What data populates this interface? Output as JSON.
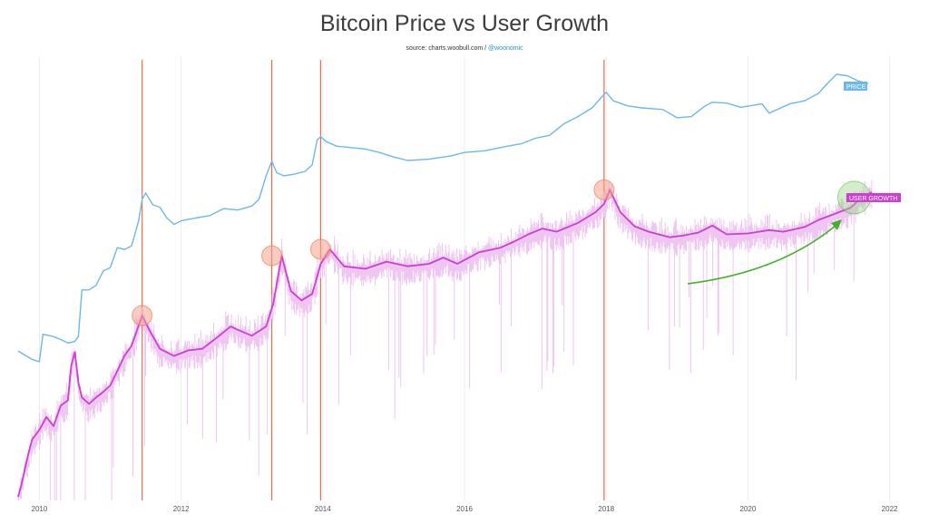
{
  "colors": {
    "price": "#6cb8ea",
    "user_growth_smooth": "#cc3fd0",
    "user_growth_raw": "#efc6f2",
    "event_line": "#f06a4d",
    "peak_highlight": "#f4a28c",
    "recent_highlight": "#9bd98a",
    "arrow": "#44b02a",
    "grid": "#ececec"
  },
  "chart_data": {
    "type": "line",
    "title": "Bitcoin Price vs User Growth",
    "source_prefix": "source: charts.woobull.com / ",
    "source_handle": "@woonomic",
    "x_ticks": [
      "2010",
      "2012",
      "2014",
      "2016",
      "2018",
      "2020",
      "2022"
    ],
    "x_range": [
      2009.7,
      2022.3
    ],
    "y_axis": "log scale, unlabeled",
    "grid": "vertical gridlines at yearly ticks",
    "series": [
      {
        "name": "PRICE",
        "key": "price",
        "x": [
          2009.7,
          2009.8,
          2009.9,
          2010.0,
          2010.05,
          2010.2,
          2010.3,
          2010.4,
          2010.5,
          2010.55,
          2010.6,
          2010.7,
          2010.8,
          2010.9,
          2011.0,
          2011.1,
          2011.2,
          2011.3,
          2011.4,
          2011.45,
          2011.5,
          2011.6,
          2011.7,
          2011.8,
          2011.9,
          2012.0,
          2012.2,
          2012.4,
          2012.6,
          2012.8,
          2013.0,
          2013.1,
          2013.2,
          2013.28,
          2013.35,
          2013.45,
          2013.6,
          2013.75,
          2013.85,
          2013.92,
          2013.97,
          2014.05,
          2014.2,
          2014.4,
          2014.6,
          2014.8,
          2015.0,
          2015.2,
          2015.5,
          2015.8,
          2016.0,
          2016.3,
          2016.6,
          2016.8,
          2017.0,
          2017.2,
          2017.4,
          2017.6,
          2017.8,
          2017.95,
          2018.0,
          2018.1,
          2018.3,
          2018.5,
          2018.8,
          2019.0,
          2019.2,
          2019.4,
          2019.5,
          2019.7,
          2019.9,
          2020.2,
          2020.3,
          2020.6,
          2020.8,
          2021.0,
          2021.1,
          2021.25,
          2021.4,
          2021.55,
          2021.7
        ],
        "y": [
          0.0012,
          0.0009,
          0.0007,
          0.0006,
          0.0035,
          0.003,
          0.0025,
          0.002,
          0.0022,
          0.003,
          0.06,
          0.06,
          0.08,
          0.2,
          0.25,
          0.9,
          0.8,
          1.0,
          5.0,
          20.0,
          30.0,
          14.0,
          12.0,
          6.0,
          4.0,
          5.0,
          6.0,
          7.0,
          11.0,
          10.0,
          13.0,
          20.0,
          90.0,
          230.0,
          110.0,
          90.0,
          100.0,
          120.0,
          180.0,
          900.0,
          1100.0,
          800.0,
          600.0,
          550.0,
          500.0,
          400.0,
          300.0,
          240.0,
          260.0,
          320.0,
          400.0,
          450.0,
          600.0,
          700.0,
          1000.0,
          1200.0,
          2500.0,
          4000.0,
          7000.0,
          15000.0,
          19000.0,
          11000.0,
          8000.0,
          7000.0,
          6300.0,
          3700.0,
          4000.0,
          8000.0,
          10000.0,
          9500.0,
          7300.0,
          9000.0,
          5000.0,
          9200.0,
          11000.0,
          18000.0,
          30000.0,
          60000.0,
          55000.0,
          40000.0,
          33000.0
        ]
      },
      {
        "name": "USER GROWTH",
        "key": "users",
        "x": [
          2009.7,
          2009.75,
          2009.8,
          2009.85,
          2009.9,
          2010.0,
          2010.1,
          2010.2,
          2010.3,
          2010.4,
          2010.45,
          2010.5,
          2010.55,
          2010.6,
          2010.7,
          2010.8,
          2010.9,
          2011.0,
          2011.1,
          2011.2,
          2011.3,
          2011.45,
          2011.55,
          2011.7,
          2011.9,
          2012.1,
          2012.3,
          2012.5,
          2012.7,
          2012.8,
          2013.0,
          2013.2,
          2013.3,
          2013.42,
          2013.55,
          2013.7,
          2013.85,
          2013.97,
          2014.1,
          2014.3,
          2014.6,
          2014.9,
          2015.2,
          2015.5,
          2015.7,
          2015.9,
          2016.2,
          2016.5,
          2016.7,
          2016.9,
          2017.1,
          2017.3,
          2017.6,
          2017.85,
          2017.97,
          2018.05,
          2018.2,
          2018.4,
          2018.6,
          2018.9,
          2019.1,
          2019.3,
          2019.5,
          2019.7,
          2020.0,
          2020.3,
          2020.5,
          2020.8,
          2021.0,
          2021.2,
          2021.45,
          2021.6,
          2021.75
        ],
        "y": [
          1000,
          1500,
          2500,
          4000,
          6000,
          8000,
          12000,
          9000,
          17000,
          20000,
          60000,
          90000,
          35000,
          22000,
          18000,
          22000,
          26000,
          32000,
          50000,
          80000,
          110000,
          280000,
          180000,
          100000,
          80000,
          95000,
          100000,
          140000,
          200000,
          180000,
          150000,
          200000,
          400000,
          1800000,
          600000,
          450000,
          550000,
          1400000,
          2200000,
          1300000,
          1200000,
          1500000,
          1300000,
          1400000,
          1700000,
          1400000,
          2000000,
          2300000,
          2800000,
          3500000,
          4200000,
          3800000,
          5000000,
          7000000,
          9000000,
          14000000,
          7000000,
          4500000,
          3800000,
          3200000,
          3400000,
          3700000,
          4600000,
          3500000,
          3600000,
          4000000,
          3800000,
          4400000,
          5500000,
          6500000,
          8000000,
          11000000,
          13000000
        ]
      }
    ],
    "event_lines_x": [
      2011.45,
      2013.28,
      2013.97,
      2017.97
    ],
    "peak_markers": [
      {
        "x": 2011.45,
        "y": 280000
      },
      {
        "x": 2013.28,
        "y": 1800000
      },
      {
        "x": 2013.97,
        "y": 2200000
      },
      {
        "x": 2017.97,
        "y": 14000000
      }
    ],
    "recent_marker": {
      "x": 2021.5,
      "y": 11000000
    },
    "labels": {
      "price_tag": "PRICE",
      "user_growth_tag": "USER GROWTH"
    }
  }
}
